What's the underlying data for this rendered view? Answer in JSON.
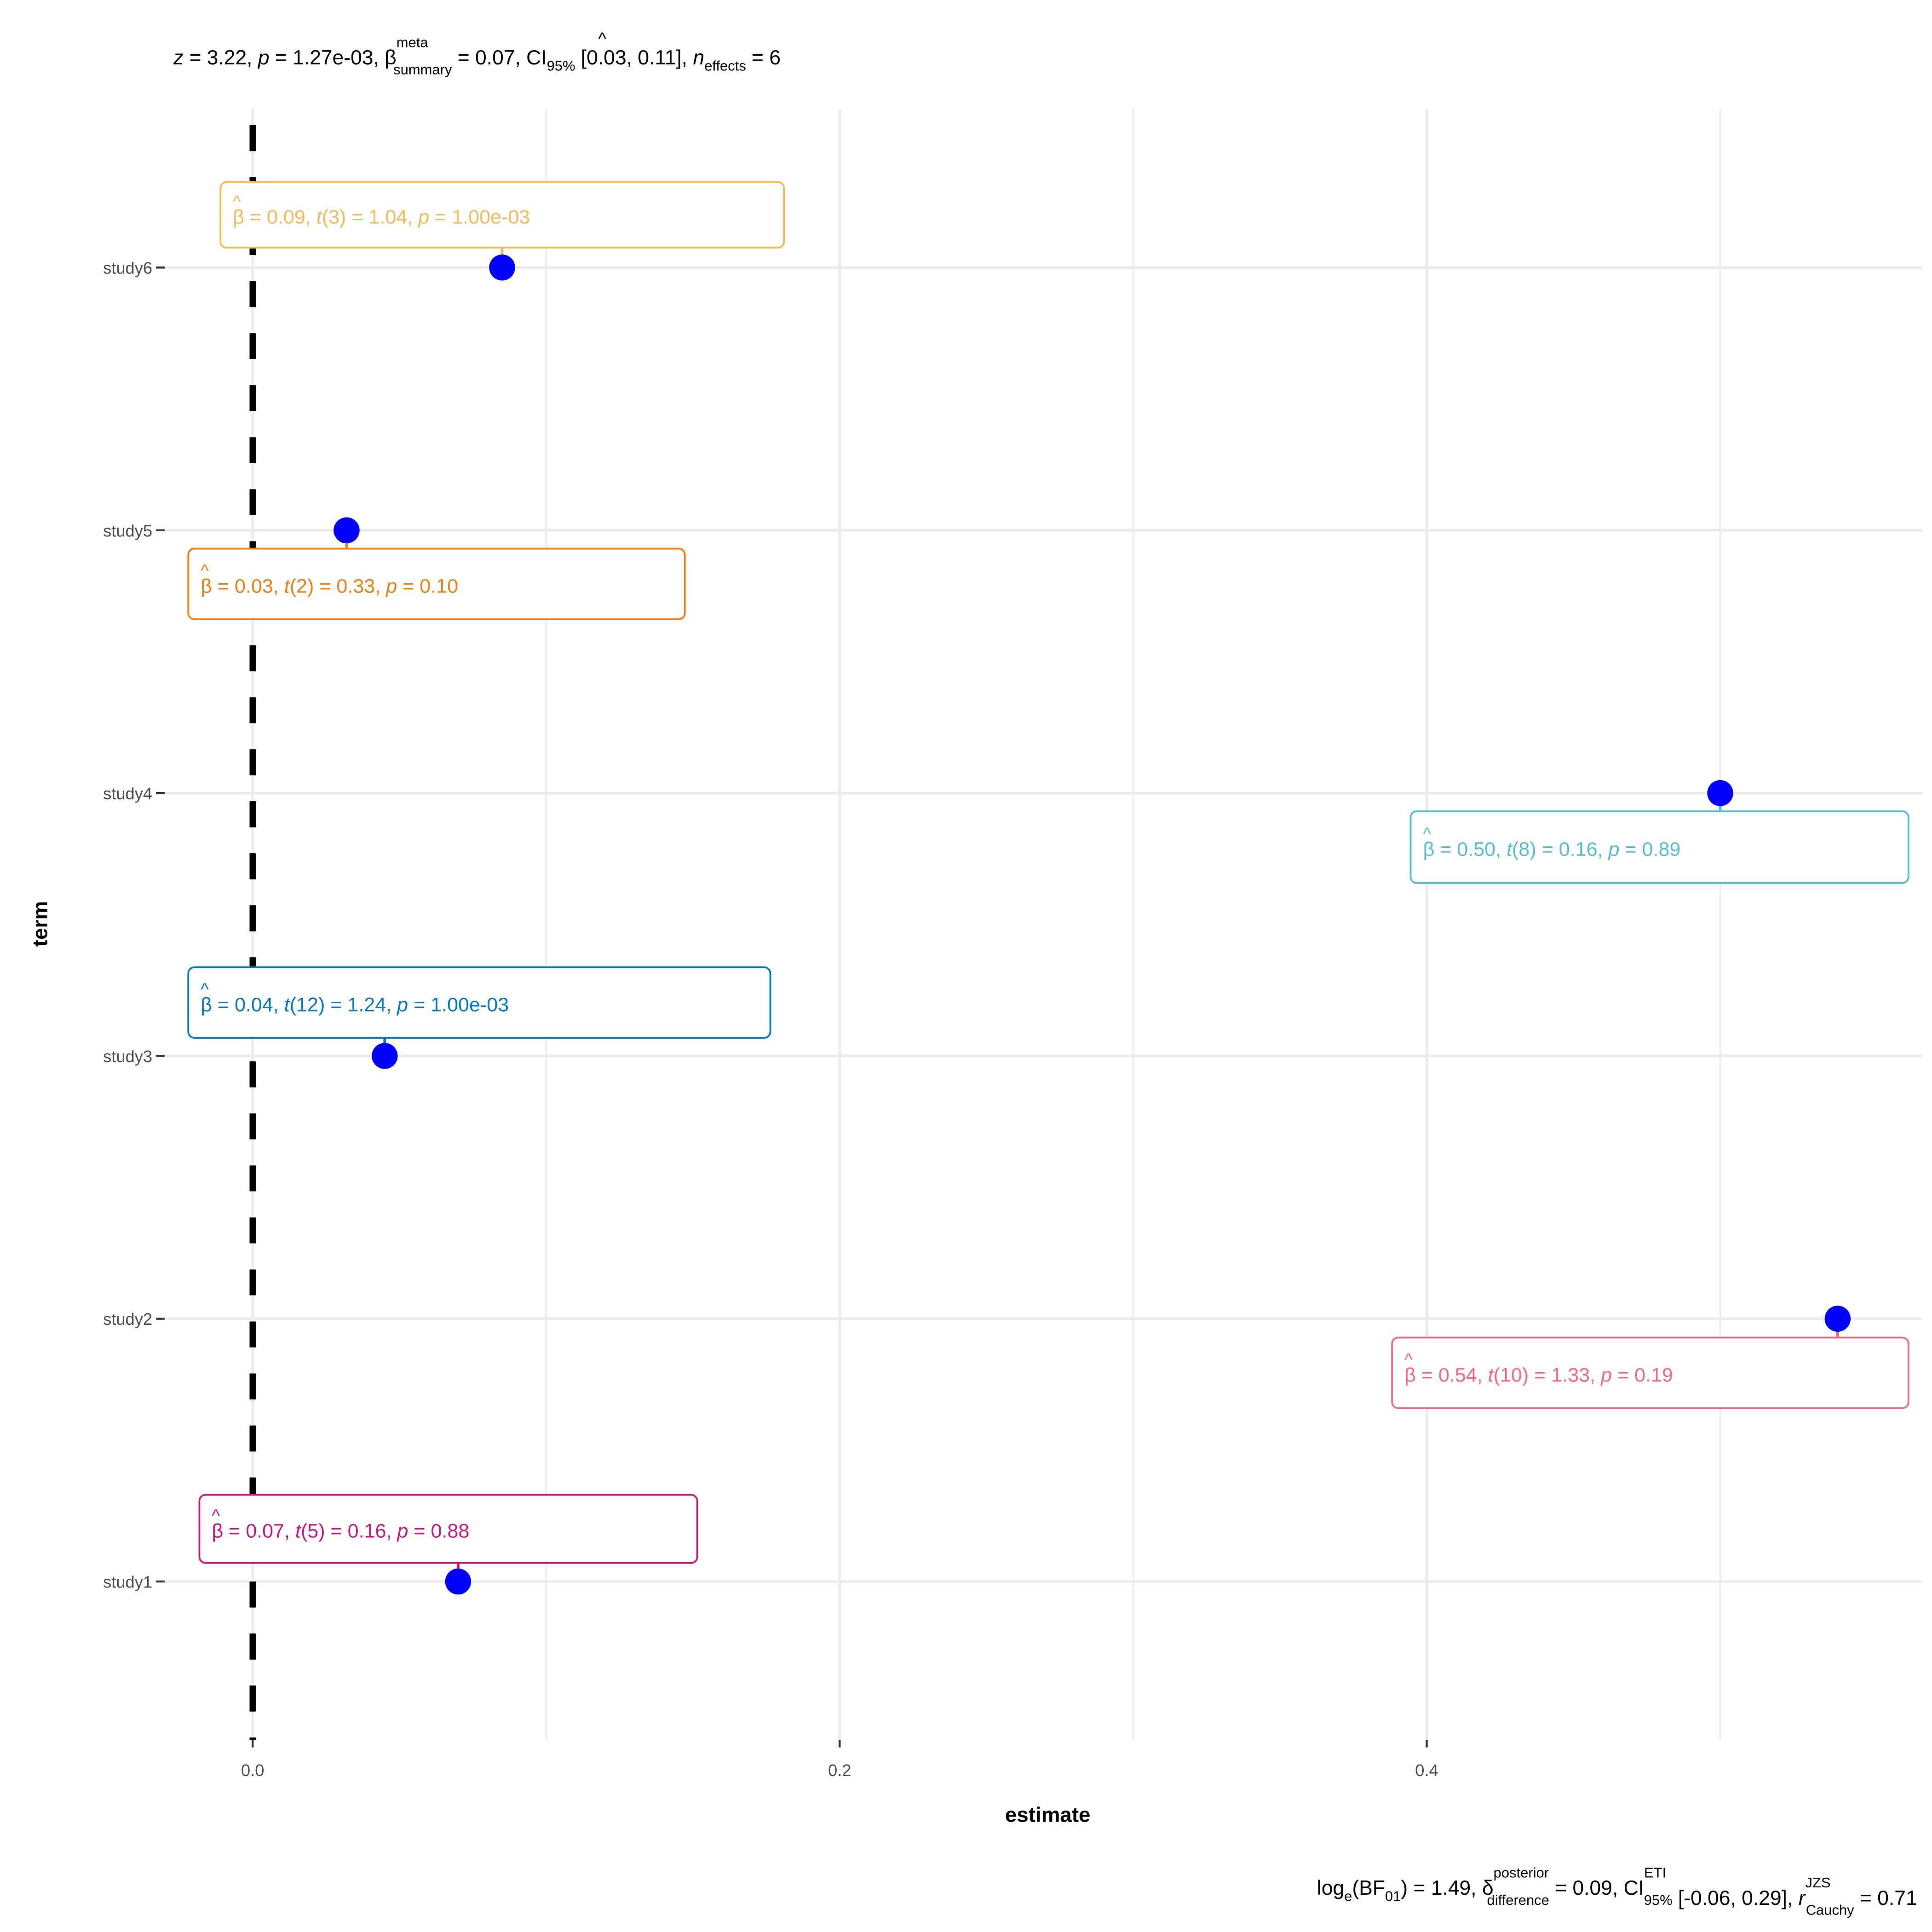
{
  "chart_data": {
    "type": "scatter",
    "subtype": "forest-plot",
    "title": {
      "z": "3.22",
      "p": "1.27e-03",
      "beta_symbol": "β",
      "beta_sup": "meta",
      "beta_sub": "summary",
      "beta_value": "0.07",
      "ci_sub": "95%",
      "ci": "[0.03, 0.11]",
      "n_sub": "effects",
      "n": "6"
    },
    "caption": {
      "log": "log",
      "log_sub": "e",
      "bf": "BF",
      "bf_sub": "01",
      "bf_value": "1.49",
      "delta_symbol": "δ",
      "delta_sup": "posterior",
      "delta_sub": "difference",
      "delta_value": "0.09",
      "ci_sup": "ETI",
      "ci_sub": "95%",
      "ci": "[-0.06, 0.29]",
      "r_sup": "JZS",
      "r_sub": "Cauchy",
      "r_value": "0.71"
    },
    "xlabel": "estimate",
    "ylabel": "term",
    "xlim": [
      -0.025,
      0.575
    ],
    "x_ticks": [
      {
        "value": 0.0,
        "label": "0.0"
      },
      {
        "value": 0.2,
        "label": "0.2"
      },
      {
        "value": 0.4,
        "label": "0.4"
      }
    ],
    "x_minor_grid": [
      0.1,
      0.3,
      0.5
    ],
    "categories": [
      "study1",
      "study2",
      "study3",
      "study4",
      "study5",
      "study6"
    ],
    "reference_line": {
      "x": 0,
      "style": "dashed",
      "color": "#000000"
    },
    "point_color": "#0000ff",
    "grid": true,
    "legend": "none",
    "points": [
      {
        "term": "study1",
        "estimate": 0.07,
        "beta": "0.07",
        "df": "5",
        "t": "0.16",
        "p": "0.88",
        "color": "#C51B7D",
        "label_pos": "above"
      },
      {
        "term": "study2",
        "estimate": 0.54,
        "beta": "0.54",
        "df": "10",
        "t": "1.33",
        "p": "0.19",
        "color": "#F8697F",
        "label_pos": "below"
      },
      {
        "term": "study3",
        "estimate": 0.045,
        "beta": "0.04",
        "df": "12",
        "t": "1.24",
        "p": "1.00e-03",
        "color": "#0A78BD",
        "label_pos": "above"
      },
      {
        "term": "study4",
        "estimate": 0.5,
        "beta": "0.50",
        "df": "8",
        "t": "0.16",
        "p": "0.89",
        "color": "#56BCCF",
        "label_pos": "below"
      },
      {
        "term": "study5",
        "estimate": 0.032,
        "beta": "0.03",
        "df": "2",
        "t": "0.33",
        "p": "0.10",
        "color": "#EC7F16",
        "label_pos": "below"
      },
      {
        "term": "study6",
        "estimate": 0.085,
        "beta": "0.09",
        "df": "3",
        "t": "1.04",
        "p": "1.00e-03",
        "color": "#F4B95B",
        "label_pos": "above"
      }
    ]
  }
}
